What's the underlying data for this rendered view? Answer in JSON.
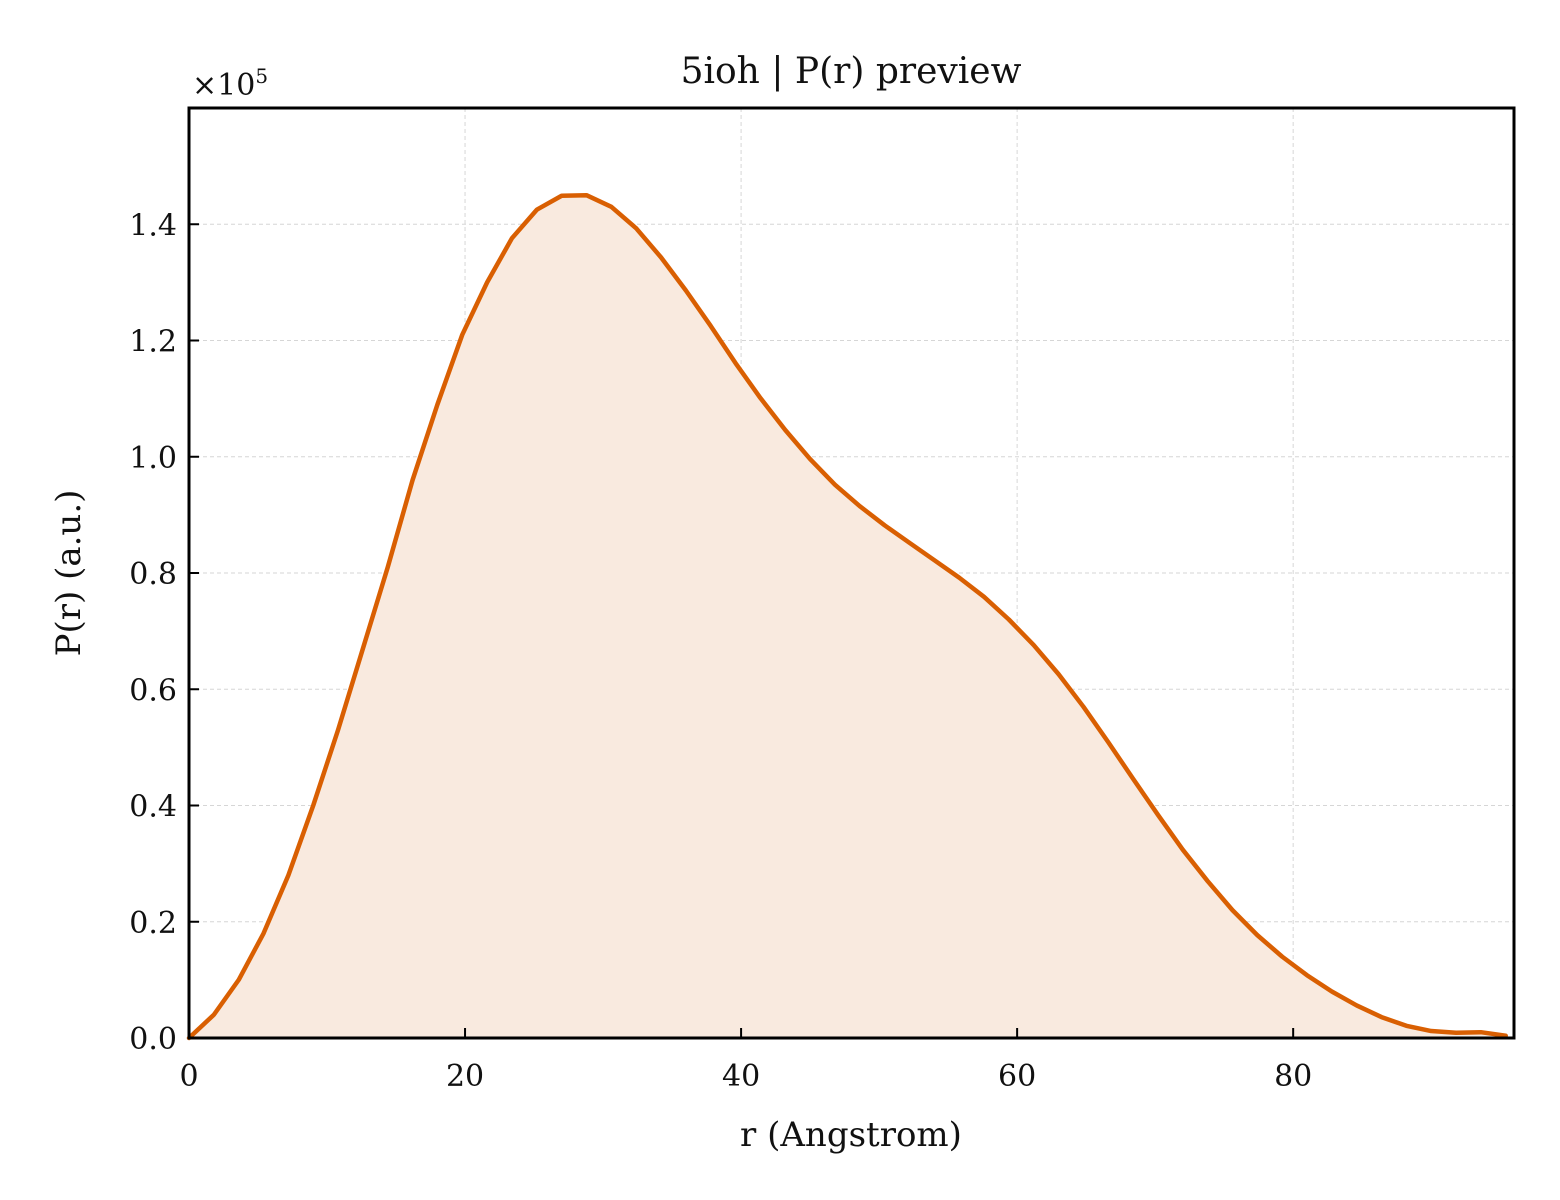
{
  "chart_data": {
    "type": "area",
    "title": "5ioh | P(r) preview",
    "xlabel": "r (Angstrom)",
    "ylabel": "P(r) (a.u.)",
    "y_multiplier_text": "×10",
    "y_multiplier_exponent": "5",
    "xlim": [
      0,
      96
    ],
    "ylim": [
      0,
      1.6
    ],
    "y_scale_factor": 100000,
    "xticks": [
      0,
      20,
      40,
      60,
      80
    ],
    "xtick_labels": [
      "0",
      "20",
      "40",
      "60",
      "80"
    ],
    "yticks": [
      0.0,
      0.2,
      0.4,
      0.6,
      0.8,
      1.0,
      1.2,
      1.4
    ],
    "ytick_labels": [
      "0.0",
      "0.2",
      "0.4",
      "0.6",
      "0.8",
      "1.0",
      "1.2",
      "1.4"
    ],
    "grid": true,
    "line_color": "#d95f02",
    "fill_color": "#f9eadf",
    "series": [
      {
        "x": [
          0,
          1.8,
          3.6,
          5.4,
          7.2,
          9.0,
          10.8,
          12.6,
          14.4,
          16.2,
          18.0,
          19.8,
          21.6,
          23.4,
          25.2,
          27.0,
          28.8,
          30.6,
          32.4,
          34.2,
          36.0,
          37.8,
          39.6,
          41.4,
          43.2,
          45.0,
          46.8,
          48.6,
          50.4,
          52.2,
          54.0,
          55.8,
          57.6,
          59.4,
          61.2,
          63.0,
          64.8,
          66.6,
          68.4,
          70.2,
          72.0,
          73.8,
          75.6,
          77.4,
          79.2,
          81.0,
          82.8,
          84.6,
          86.4,
          88.2,
          90.0,
          91.8,
          93.6,
          95.4
        ],
        "values": [
          0.0,
          0.04,
          0.1,
          0.18,
          0.28,
          0.4,
          0.53,
          0.67,
          0.81,
          0.96,
          1.09,
          1.21,
          1.3,
          1.376,
          1.425,
          1.449,
          1.45,
          1.43,
          1.393,
          1.343,
          1.286,
          1.225,
          1.161,
          1.101,
          1.046,
          0.996,
          0.952,
          0.915,
          0.882,
          0.852,
          0.822,
          0.792,
          0.759,
          0.72,
          0.676,
          0.626,
          0.57,
          0.509,
          0.446,
          0.384,
          0.324,
          0.27,
          0.22,
          0.177,
          0.14,
          0.108,
          0.08,
          0.056,
          0.036,
          0.021,
          0.012,
          0.009,
          0.01,
          0.004
        ]
      }
    ]
  }
}
